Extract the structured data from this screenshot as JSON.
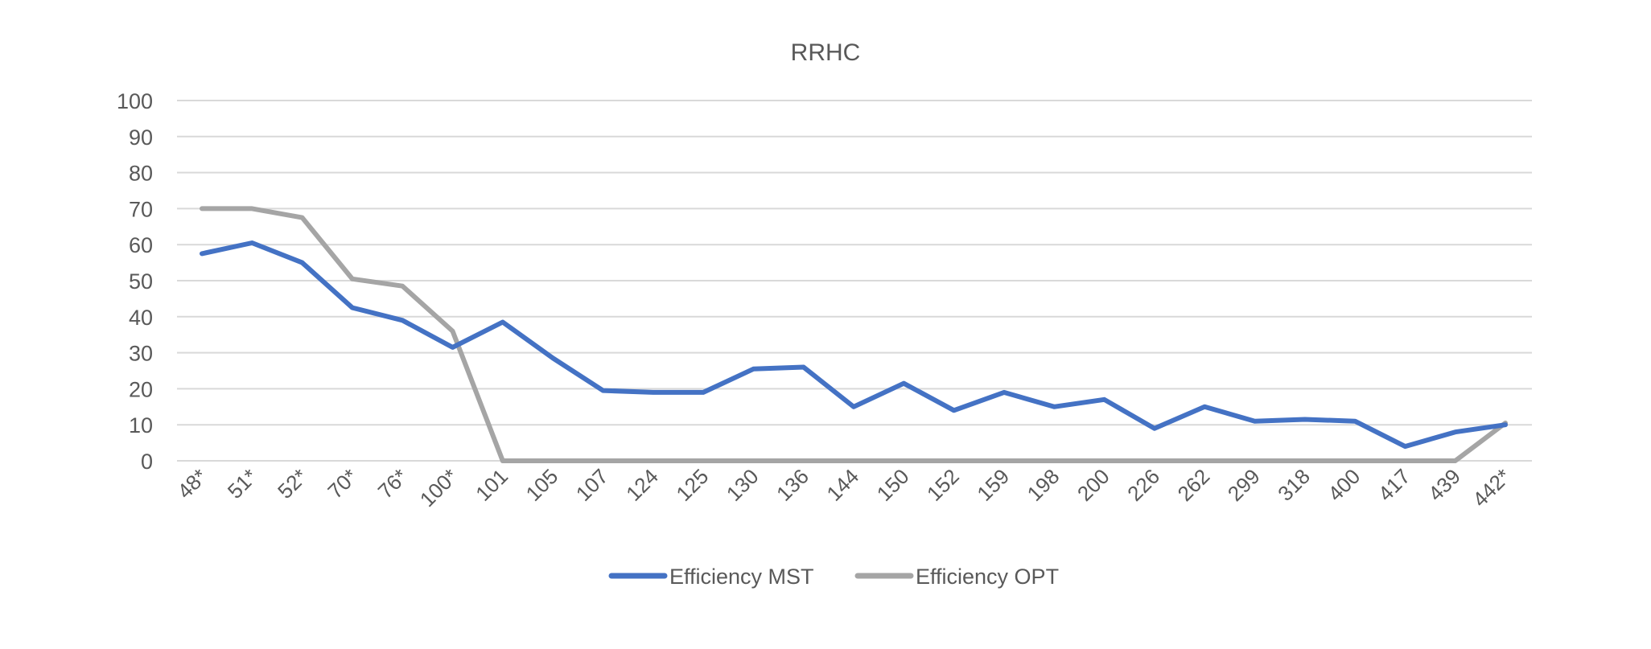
{
  "chart_data": {
    "type": "line",
    "title": "RRHC",
    "xlabel": "",
    "ylabel": "",
    "ylim": [
      0,
      100
    ],
    "yticks": [
      0,
      10,
      20,
      30,
      40,
      50,
      60,
      70,
      80,
      90,
      100
    ],
    "grid": true,
    "legend_position": "bottom",
    "categories": [
      "48*",
      "51*",
      "52*",
      "70*",
      "76*",
      "100*",
      "101",
      "105",
      "107",
      "124",
      "125",
      "130",
      "136",
      "144",
      "150",
      "152",
      "159",
      "198",
      "200",
      "226",
      "262",
      "299",
      "318",
      "400",
      "417",
      "439",
      "442*"
    ],
    "series": [
      {
        "name": "Efficiency MST",
        "color": "#4472c4",
        "values": [
          57.5,
          60.5,
          55,
          42.5,
          39,
          31.5,
          38.5,
          28.5,
          19.5,
          19,
          19,
          25.5,
          26,
          15,
          21.5,
          14,
          19,
          15,
          17,
          9,
          15,
          11,
          11.5,
          11,
          4,
          8,
          10
        ]
      },
      {
        "name": "Efficiency OPT",
        "color": "#a5a5a5",
        "values": [
          70,
          70,
          67.5,
          50.5,
          48.5,
          36,
          0,
          0,
          0,
          0,
          0,
          0,
          0,
          0,
          0,
          0,
          0,
          0,
          0,
          0,
          0,
          0,
          0,
          0,
          0,
          0,
          10.5
        ]
      }
    ]
  }
}
